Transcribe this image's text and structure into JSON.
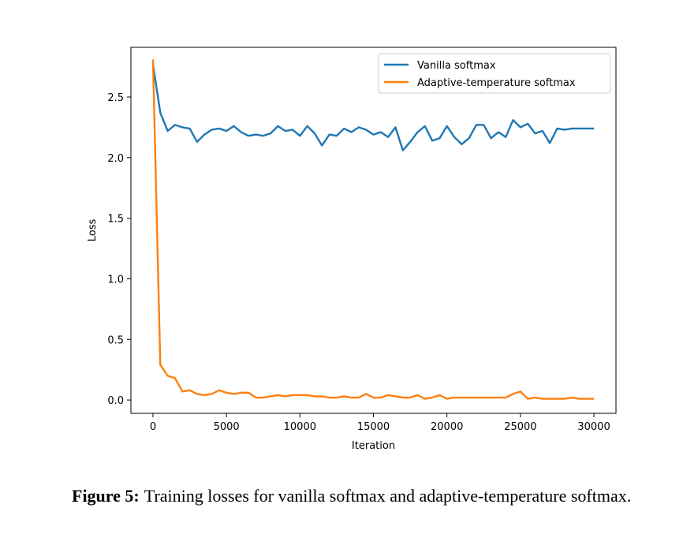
{
  "figure": {
    "label": "Figure 5:",
    "caption": "Training losses for vanilla softmax and adaptive-temperature softmax."
  },
  "chart_data": {
    "type": "line",
    "title": "",
    "xlabel": "Iteration",
    "ylabel": "Loss",
    "xlim": [
      -1500,
      31500
    ],
    "ylim": [
      -0.11,
      2.91
    ],
    "xticks": [
      0,
      5000,
      10000,
      15000,
      20000,
      25000,
      30000
    ],
    "yticks": [
      0.0,
      0.5,
      1.0,
      1.5,
      2.0,
      2.5
    ],
    "xtick_labels": [
      "0",
      "5000",
      "10000",
      "15000",
      "20000",
      "25000",
      "30000"
    ],
    "ytick_labels": [
      "0.0",
      "0.5",
      "1.0",
      "1.5",
      "2.0",
      "2.5"
    ],
    "grid": false,
    "legend_position": "top-right",
    "x": [
      0,
      500,
      1000,
      1500,
      2000,
      2500,
      3000,
      3500,
      4000,
      4500,
      5000,
      5500,
      6000,
      6500,
      7000,
      7500,
      8000,
      8500,
      9000,
      9500,
      10000,
      10500,
      11000,
      11500,
      12000,
      12500,
      13000,
      13500,
      14000,
      14500,
      15000,
      15500,
      16000,
      16500,
      17000,
      17500,
      18000,
      18500,
      19000,
      19500,
      20000,
      20500,
      21000,
      21500,
      22000,
      22500,
      23000,
      23500,
      24000,
      24500,
      25000,
      25500,
      26000,
      26500,
      27000,
      27500,
      28000,
      28500,
      29000,
      29500,
      30000
    ],
    "series": [
      {
        "name": "Vanilla softmax",
        "color": "#1f77b4",
        "values": [
          2.77,
          2.37,
          2.22,
          2.27,
          2.25,
          2.24,
          2.13,
          2.19,
          2.23,
          2.24,
          2.22,
          2.26,
          2.21,
          2.18,
          2.19,
          2.18,
          2.2,
          2.26,
          2.22,
          2.23,
          2.18,
          2.26,
          2.2,
          2.1,
          2.19,
          2.18,
          2.24,
          2.21,
          2.25,
          2.23,
          2.19,
          2.21,
          2.17,
          2.25,
          2.06,
          2.13,
          2.21,
          2.26,
          2.14,
          2.16,
          2.26,
          2.17,
          2.11,
          2.16,
          2.27,
          2.27,
          2.16,
          2.21,
          2.17,
          2.31,
          2.25,
          2.28,
          2.2,
          2.22,
          2.12,
          2.24,
          2.23,
          2.24,
          2.24,
          2.24,
          2.24
        ]
      },
      {
        "name": "Adaptive-temperature softmax",
        "color": "#ff7f0e",
        "values": [
          2.81,
          0.29,
          0.2,
          0.18,
          0.07,
          0.08,
          0.05,
          0.04,
          0.05,
          0.08,
          0.06,
          0.05,
          0.06,
          0.06,
          0.02,
          0.02,
          0.03,
          0.04,
          0.03,
          0.04,
          0.04,
          0.04,
          0.03,
          0.03,
          0.02,
          0.02,
          0.03,
          0.02,
          0.02,
          0.05,
          0.02,
          0.02,
          0.04,
          0.03,
          0.02,
          0.02,
          0.04,
          0.01,
          0.02,
          0.04,
          0.01,
          0.02,
          0.02,
          0.02,
          0.02,
          0.02,
          0.02,
          0.02,
          0.02,
          0.05,
          0.07,
          0.01,
          0.02,
          0.01,
          0.01,
          0.01,
          0.01,
          0.02,
          0.01,
          0.01,
          0.01
        ]
      }
    ]
  }
}
